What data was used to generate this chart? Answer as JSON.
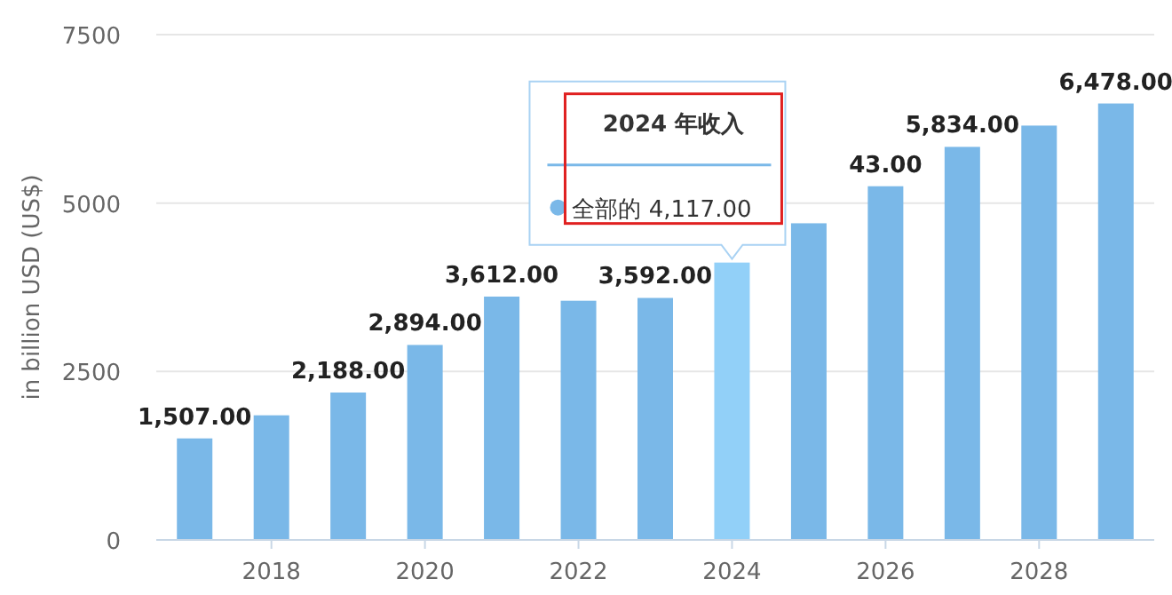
{
  "chart_data": {
    "type": "bar",
    "ylabel": "in billion USD (US$)",
    "categories": [
      null,
      "2018",
      null,
      "2020",
      null,
      "2022",
      null,
      "2024",
      null,
      "2026",
      null,
      "2028",
      null
    ],
    "values": [
      1507,
      1850,
      2188,
      2894,
      3612,
      3550,
      3592,
      4117,
      4700,
      5250,
      5834,
      6150,
      6478
    ],
    "colors": [
      "#7ab8e8",
      "#7ab8e8",
      "#7ab8e8",
      "#7ab8e8",
      "#7ab8e8",
      "#7ab8e8",
      "#7ab8e8",
      "#92d0f8",
      "#7ab8e8",
      "#7ab8e8",
      "#7ab8e8",
      "#7ab8e8",
      "#7ab8e8"
    ],
    "value_labels": [
      "1,507.00",
      null,
      "2,188.00",
      "2,894.00",
      "3,612.00",
      null,
      "3,592.00",
      null,
      null,
      null,
      "5,834.00",
      null,
      "6,478.00"
    ],
    "ylim": [
      0,
      7500
    ],
    "yticks": [
      0,
      2500,
      5000,
      7500
    ],
    "grid": "y",
    "annotations": [
      "2024 年收入",
      "全部的 4,117.00",
      "43.00"
    ]
  }
}
